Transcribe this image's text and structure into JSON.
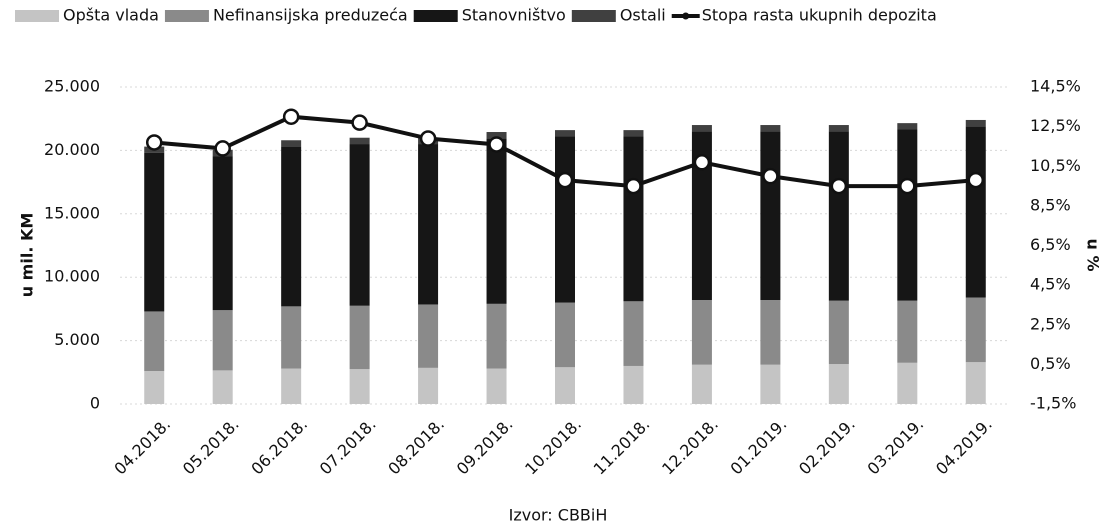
{
  "chart_data": {
    "type": "bar",
    "stacked": true,
    "y_label": "u mil. KM",
    "y2_label": "u %",
    "source": "Izvor: CBBiH",
    "categories": [
      "04.2018.",
      "05.2018.",
      "06.2018.",
      "07.2018.",
      "08.2018.",
      "09.2018.",
      "10.2018.",
      "11.2018.",
      "12.2018.",
      "01.2019.",
      "02.2019.",
      "03.2019.",
      "04.2019."
    ],
    "series": [
      {
        "name": "Opšta vlada",
        "color": "#c4c4c4",
        "values": [
          2600,
          2650,
          2800,
          2750,
          2850,
          2800,
          2900,
          3000,
          3100,
          3100,
          3150,
          3250,
          3300
        ]
      },
      {
        "name": "Nefinansijska preduzeća",
        "color": "#8a8a8a",
        "values": [
          4700,
          4750,
          4900,
          5000,
          5000,
          5100,
          5100,
          5100,
          5100,
          5100,
          5000,
          4900,
          5100
        ]
      },
      {
        "name": "Stanovništvo",
        "color": "#161616",
        "values": [
          12500,
          12150,
          12600,
          12750,
          12650,
          13050,
          13100,
          13000,
          13300,
          13300,
          13350,
          13500,
          13500
        ]
      },
      {
        "name": "Ostali",
        "color": "#404040",
        "values": [
          500,
          500,
          500,
          500,
          500,
          500,
          500,
          500,
          500,
          500,
          500,
          500,
          500
        ]
      },
      {
        "name": "Stopa rasta ukupnih depozita",
        "color": "#111111",
        "type": "line",
        "axis": "y2",
        "values": [
          11.7,
          11.4,
          13.0,
          12.7,
          11.9,
          11.6,
          9.8,
          9.5,
          10.7,
          10.0,
          9.5,
          9.5,
          9.8
        ]
      }
    ],
    "ylim": [
      0,
      25000
    ],
    "yticks": [
      0,
      {
        "value": 5000,
        "label": "5.000"
      },
      {
        "value": 10000,
        "label": "10.000"
      },
      {
        "value": 15000,
        "label": "15.000"
      },
      {
        "value": 20000,
        "label": "20.000"
      },
      {
        "value": 25000,
        "label": "25.000"
      }
    ],
    "y2lim": [
      -1.5,
      14.5
    ],
    "y2ticks": [
      {
        "value": -1.5,
        "label": "-1,5%"
      },
      {
        "value": 0.5,
        "label": "0,5%"
      },
      {
        "value": 2.5,
        "label": "2,5%"
      },
      {
        "value": 4.5,
        "label": "4,5%"
      },
      {
        "value": 6.5,
        "label": "6,5%"
      },
      {
        "value": 8.5,
        "label": "8,5%"
      },
      {
        "value": 10.5,
        "label": "10,5%"
      },
      {
        "value": 12.5,
        "label": "12,5%"
      },
      {
        "value": 14.5,
        "label": "14,5%"
      }
    ],
    "grid": true,
    "legend": "top"
  }
}
